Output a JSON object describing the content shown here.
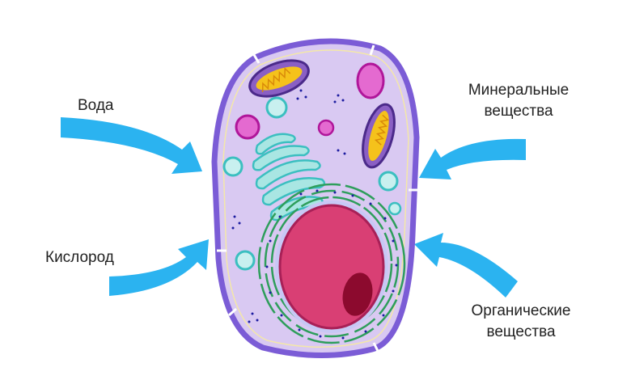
{
  "labels": {
    "water": "Вода",
    "oxygen": "Кислород",
    "minerals_line1": "Минеральные",
    "minerals_line2": "вещества",
    "organic_line1": "Органические",
    "organic_line2": "вещества"
  },
  "colors": {
    "arrow": "#2bb3f0",
    "cell_wall": "#7b5cd6",
    "cytoplasm": "#d9c9f2",
    "nucleus": "#d93f74",
    "nucleolus": "#8c0a2e",
    "er": "#2e9e5b",
    "golgi": "#7fd6d6",
    "mitochondria": "#f5c21b",
    "vacuole_pink": "#e46ad0"
  }
}
